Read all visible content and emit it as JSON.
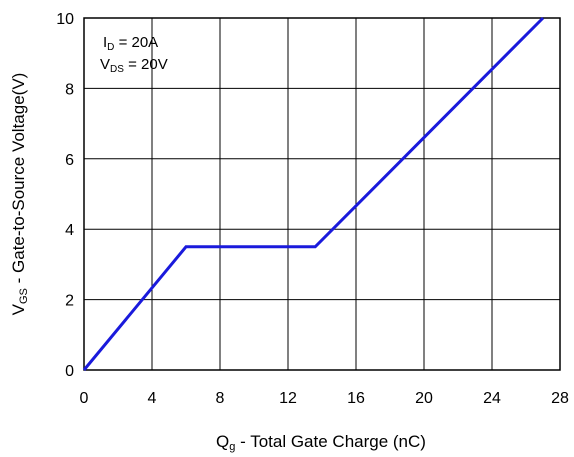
{
  "chart_data": {
    "type": "line",
    "title": "",
    "xlabel": {
      "main": "Q",
      "sub": "g",
      "rest": " - Total Gate Charge (nC)"
    },
    "ylabel": {
      "main": "V",
      "sub": "GS",
      "rest": " - Gate-to-Source Voltage(V)"
    },
    "xlim": [
      0,
      28
    ],
    "ylim": [
      0,
      10
    ],
    "xticks": [
      0,
      4,
      8,
      12,
      16,
      20,
      24,
      28
    ],
    "yticks": [
      0,
      2,
      4,
      6,
      8,
      10
    ],
    "grid": true,
    "annotations": [
      {
        "main": "I",
        "sub": "D",
        "rest": " = 20A"
      },
      {
        "main": "V",
        "sub": "DS",
        "rest": " = 20V"
      }
    ],
    "series": [
      {
        "color": "#1a1adc",
        "x": [
          0,
          6.0,
          13.6,
          27.0
        ],
        "y": [
          0,
          3.5,
          3.5,
          10.0
        ]
      }
    ]
  }
}
